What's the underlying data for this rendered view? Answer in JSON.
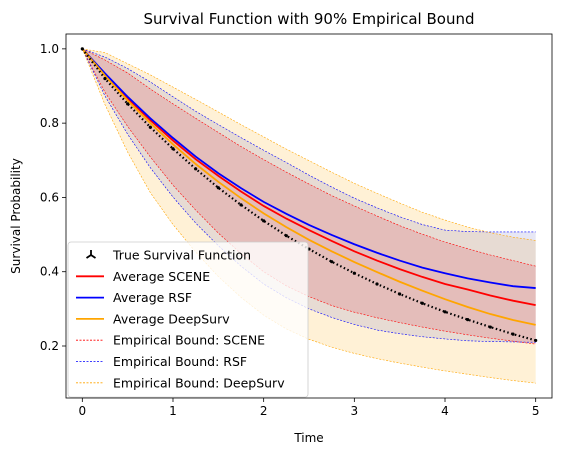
{
  "chart_data": {
    "type": "line",
    "title": "Survival Function with 90% Empirical Bound",
    "xlabel": "Time",
    "ylabel": "Survival Probability",
    "xlim": [
      -0.18,
      5.18
    ],
    "ylim": [
      0.06,
      1.04
    ],
    "xticks": [
      0,
      1,
      2,
      3,
      4,
      5
    ],
    "yticks": [
      0.2,
      0.4,
      0.6,
      0.8,
      1.0
    ],
    "ytick_labels": [
      "0.2",
      "0.4",
      "0.6",
      "0.8",
      "1.0"
    ],
    "grid": false,
    "legend_position": "lower-left",
    "x": [
      0,
      0.25,
      0.5,
      0.75,
      1,
      1.25,
      1.5,
      1.75,
      2,
      2.25,
      2.5,
      2.75,
      3,
      3.25,
      3.5,
      3.75,
      4,
      4.25,
      4.5,
      4.75,
      5
    ],
    "series": [
      {
        "name": "True Survival Function",
        "style": "marker-tri",
        "color": "#000000",
        "values": [
          1.0,
          0.92,
          0.852,
          0.789,
          0.731,
          0.677,
          0.626,
          0.58,
          0.537,
          0.497,
          0.461,
          0.427,
          0.396,
          0.367,
          0.34,
          0.315,
          0.292,
          0.271,
          0.251,
          0.232,
          0.215
        ],
        "note_values_shown": "approx"
      },
      {
        "name": "Average SCENE",
        "style": "solid",
        "color": "#ff0000",
        "values": [
          1.0,
          0.932,
          0.867,
          0.808,
          0.753,
          0.703,
          0.658,
          0.616,
          0.577,
          0.543,
          0.512,
          0.483,
          0.455,
          0.43,
          0.407,
          0.386,
          0.367,
          0.352,
          0.336,
          0.322,
          0.31
        ]
      },
      {
        "name": "Average RSF",
        "style": "solid",
        "color": "#0000ff",
        "values": [
          1.0,
          0.934,
          0.871,
          0.813,
          0.76,
          0.71,
          0.665,
          0.625,
          0.588,
          0.556,
          0.526,
          0.499,
          0.474,
          0.451,
          0.43,
          0.411,
          0.396,
          0.382,
          0.371,
          0.361,
          0.356
        ]
      },
      {
        "name": "Average DeepSurv",
        "style": "solid",
        "color": "#ffa500",
        "values": [
          1.0,
          0.928,
          0.861,
          0.8,
          0.743,
          0.69,
          0.642,
          0.598,
          0.557,
          0.52,
          0.486,
          0.455,
          0.426,
          0.399,
          0.373,
          0.349,
          0.326,
          0.305,
          0.286,
          0.27,
          0.257
        ]
      }
    ],
    "bounds": [
      {
        "name": "Empirical Bound: SCENE",
        "color": "#ff0000",
        "lower": [
          1.0,
          0.883,
          0.791,
          0.709,
          0.633,
          0.566,
          0.504,
          0.449,
          0.4,
          0.362,
          0.333,
          0.309,
          0.291,
          0.276,
          0.263,
          0.251,
          0.24,
          0.23,
          0.221,
          0.213,
          0.205
        ],
        "upper": [
          1.0,
          0.97,
          0.935,
          0.892,
          0.852,
          0.813,
          0.775,
          0.737,
          0.702,
          0.668,
          0.636,
          0.605,
          0.577,
          0.55,
          0.524,
          0.501,
          0.48,
          0.462,
          0.445,
          0.43,
          0.415
        ]
      },
      {
        "name": "Empirical Bound: RSF",
        "color": "#0000ff",
        "lower": [
          1.0,
          0.873,
          0.77,
          0.68,
          0.601,
          0.531,
          0.47,
          0.415,
          0.367,
          0.33,
          0.3,
          0.277,
          0.258,
          0.243,
          0.233,
          0.225,
          0.219,
          0.214,
          0.212,
          0.211,
          0.21
        ],
        "upper": [
          1.0,
          0.978,
          0.947,
          0.911,
          0.871,
          0.832,
          0.796,
          0.761,
          0.727,
          0.694,
          0.66,
          0.628,
          0.598,
          0.572,
          0.548,
          0.527,
          0.512,
          0.508,
          0.507,
          0.507,
          0.507
        ]
      },
      {
        "name": "Empirical Bound: DeepSurv",
        "color": "#ffa500",
        "lower": [
          1.0,
          0.85,
          0.722,
          0.613,
          0.527,
          0.453,
          0.387,
          0.331,
          0.283,
          0.246,
          0.218,
          0.197,
          0.18,
          0.166,
          0.154,
          0.143,
          0.133,
          0.124,
          0.115,
          0.107,
          0.1
        ],
        "upper": [
          1.0,
          0.99,
          0.96,
          0.93,
          0.897,
          0.864,
          0.83,
          0.796,
          0.763,
          0.73,
          0.699,
          0.668,
          0.638,
          0.611,
          0.585,
          0.56,
          0.539,
          0.52,
          0.505,
          0.493,
          0.484
        ]
      }
    ]
  },
  "colors": {
    "band_fill": "#d9a0b0",
    "deepsurv_fill": "#fff1d6"
  }
}
